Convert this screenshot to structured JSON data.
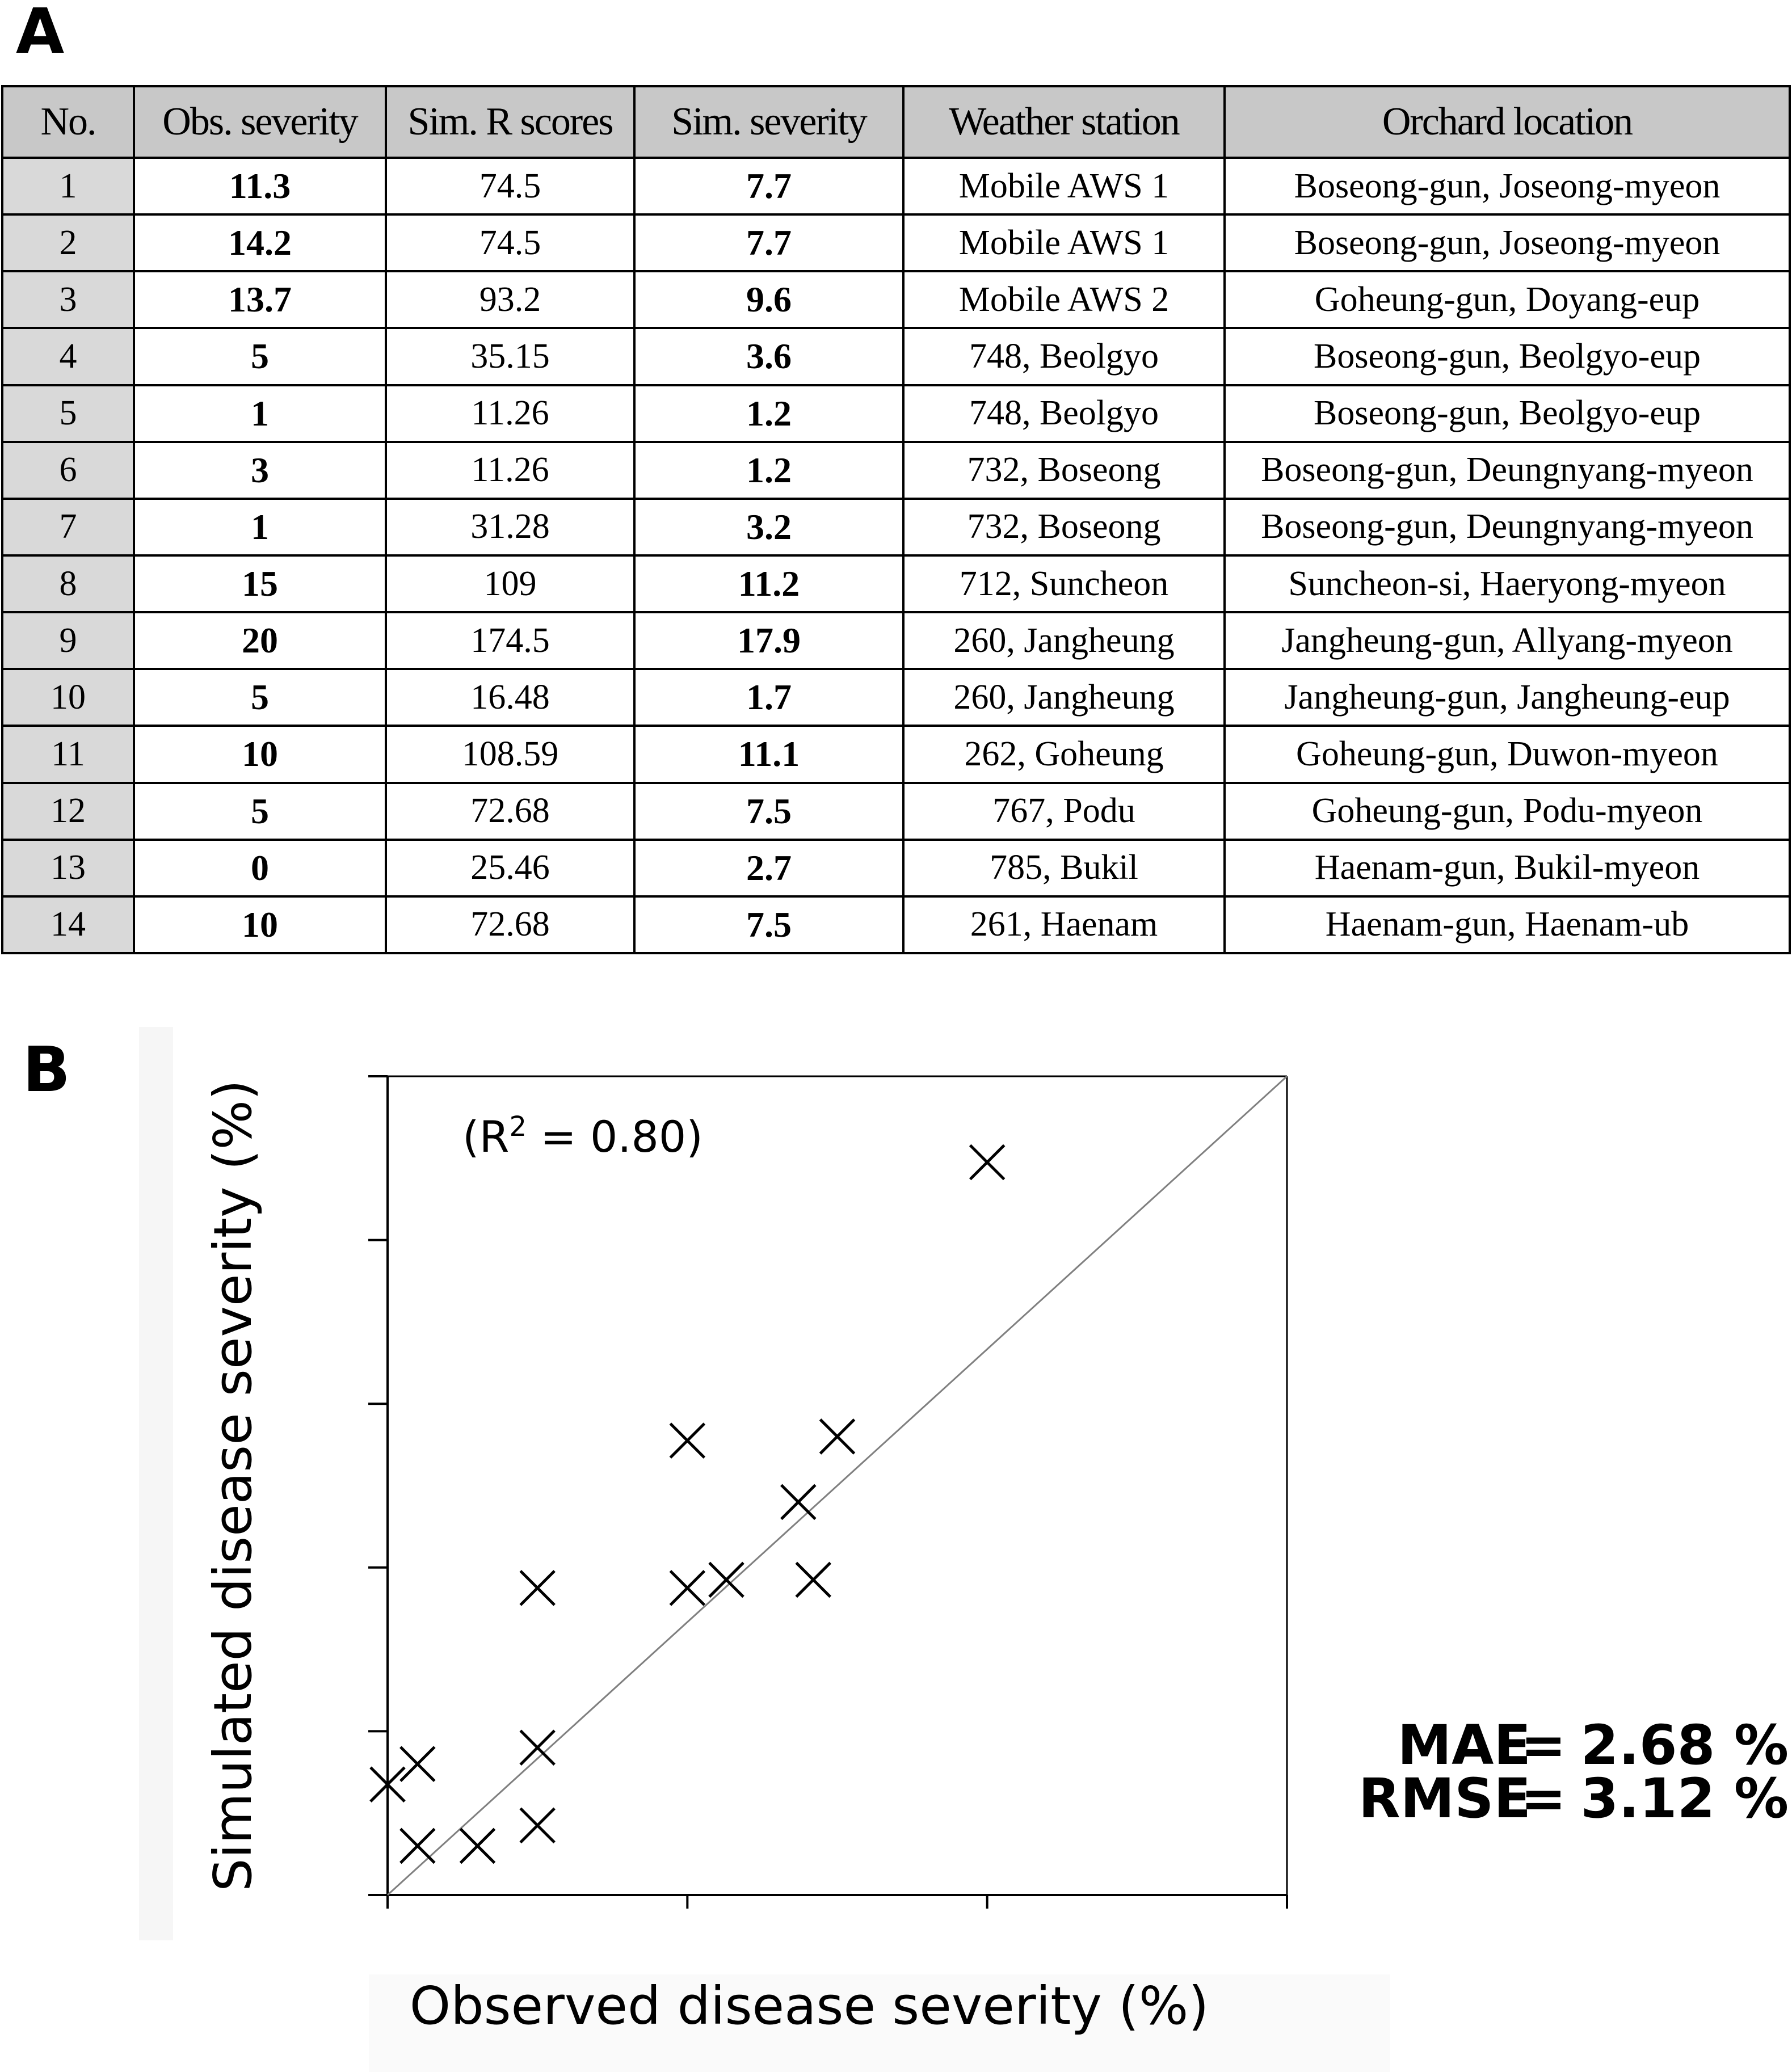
{
  "panels": {
    "a": "A",
    "b": "B"
  },
  "table": {
    "headers": [
      "No.",
      "Obs. severity",
      "Sim. R scores",
      "Sim. severity",
      "Weather station",
      "Orchard location"
    ],
    "rows": [
      [
        "1",
        "11.3",
        "74.5",
        "7.7",
        "Mobile AWS 1",
        "Boseong-gun, Joseong-myeon"
      ],
      [
        "2",
        "14.2",
        "74.5",
        "7.7",
        "Mobile AWS 1",
        "Boseong-gun, Joseong-myeon"
      ],
      [
        "3",
        "13.7",
        "93.2",
        "9.6",
        "Mobile AWS 2",
        "Goheung-gun, Doyang-eup"
      ],
      [
        "4",
        "5",
        "35.15",
        "3.6",
        "748, Beolgyo",
        "Boseong-gun, Beolgyo-eup"
      ],
      [
        "5",
        "1",
        "11.26",
        "1.2",
        "748, Beolgyo",
        "Boseong-gun, Beolgyo-eup"
      ],
      [
        "6",
        "3",
        "11.26",
        "1.2",
        "732, Boseong",
        "Boseong-gun, Deungnyang-myeon"
      ],
      [
        "7",
        "1",
        "31.28",
        "3.2",
        "732, Boseong",
        "Boseong-gun, Deungnyang-myeon"
      ],
      [
        "8",
        "15",
        "109",
        "11.2",
        "712, Suncheon",
        "Suncheon-si, Haeryong-myeon"
      ],
      [
        "9",
        "20",
        "174.5",
        "17.9",
        "260, Jangheung",
        "Jangheung-gun, Allyang-myeon"
      ],
      [
        "10",
        "5",
        "16.48",
        "1.7",
        "260, Jangheung",
        "Jangheung-gun, Jangheung-eup"
      ],
      [
        "11",
        "10",
        "108.59",
        "11.1",
        "262, Goheung",
        "Goheung-gun, Duwon-myeon"
      ],
      [
        "12",
        "5",
        "72.68",
        "7.5",
        "767, Podu",
        "Goheung-gun, Podu-myeon"
      ],
      [
        "13",
        "0",
        "25.46",
        "2.7",
        "785, Bukil",
        "Haenam-gun, Bukil-myeon"
      ],
      [
        "14",
        "10",
        "72.68",
        "7.5",
        "261, Haenam",
        "Haenam-gun, Haenam-ub"
      ]
    ],
    "bold_columns": [
      1,
      3
    ]
  },
  "chart_data": {
    "type": "scatter",
    "xlabel": "Observed disease severity (%)",
    "ylabel": "Simulated disease severity (%)",
    "xlim": [
      0,
      30
    ],
    "ylim": [
      0,
      20
    ],
    "x_ticks": [
      0,
      10,
      20,
      30
    ],
    "y_ticks": [
      0,
      4,
      8,
      12,
      16,
      20
    ],
    "grid": false,
    "marker": "x",
    "reference_line": "y = x",
    "annotation": {
      "prefix": "(R",
      "sup": "2",
      "suffix": " = 0.80)"
    },
    "points": [
      {
        "x": 11.3,
        "y": 7.7
      },
      {
        "x": 14.2,
        "y": 7.7
      },
      {
        "x": 13.7,
        "y": 9.6
      },
      {
        "x": 5,
        "y": 3.6
      },
      {
        "x": 1,
        "y": 1.2
      },
      {
        "x": 3,
        "y": 1.2
      },
      {
        "x": 1,
        "y": 3.2
      },
      {
        "x": 15,
        "y": 11.2
      },
      {
        "x": 20,
        "y": 17.9
      },
      {
        "x": 5,
        "y": 1.7
      },
      {
        "x": 10,
        "y": 11.1
      },
      {
        "x": 5,
        "y": 7.5
      },
      {
        "x": 0,
        "y": 2.7
      },
      {
        "x": 10,
        "y": 7.5
      }
    ],
    "colors": {
      "marker": "#000000",
      "reference_line": "#808080",
      "axis": "#000000"
    }
  },
  "metrics": [
    {
      "name": "MAE",
      "eq": "=",
      "value": "2.68 %"
    },
    {
      "name": "RMSE",
      "eq": "=",
      "value": "3.12 %"
    }
  ]
}
